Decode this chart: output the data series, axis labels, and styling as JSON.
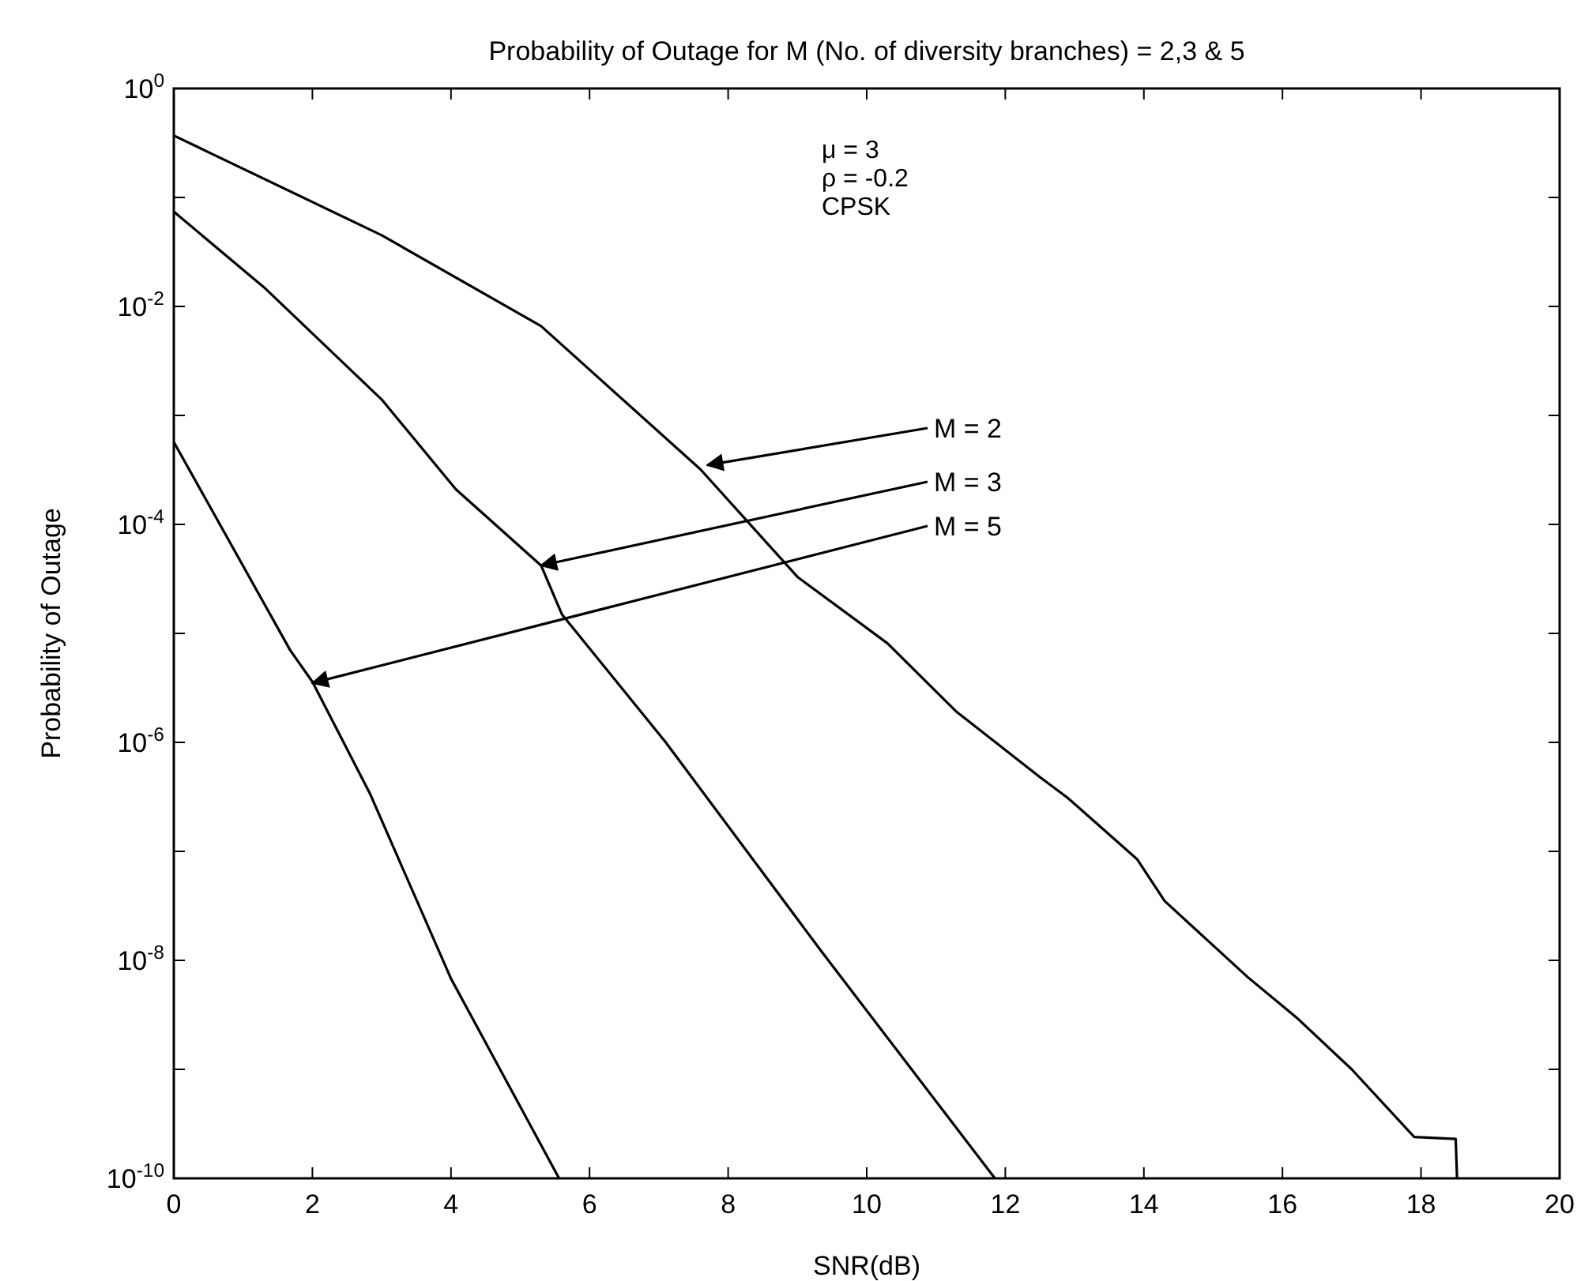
{
  "chart_data": {
    "type": "line",
    "title": "Probability of Outage for M (No. of diversity branches) = 2,3 & 5",
    "xlabel": "SNR(dB)",
    "ylabel": "Probability of Outage",
    "log": true,
    "grid": false,
    "marker": "none",
    "line_style": "solid",
    "xlim": [
      0,
      20
    ],
    "xticks": [
      0,
      2,
      4,
      6,
      8,
      10,
      12,
      14,
      16,
      18,
      20
    ],
    "ylim": [
      1e-10,
      1
    ],
    "yticks": [
      {
        "value": 1e-10,
        "label": "10$^{-10}$"
      },
      {
        "value": 1e-09,
        "label": null
      },
      {
        "value": 1e-08,
        "label": "10$^{-8}$"
      },
      {
        "value": 1e-07,
        "label": null
      },
      {
        "value": 1e-06,
        "label": "10$^{-6}$"
      },
      {
        "value": 1e-05,
        "label": null
      },
      {
        "value": 0.0001,
        "label": "10$^{-4}$"
      },
      {
        "value": 0.001,
        "label": null
      },
      {
        "value": 0.01,
        "label": "10$^{-2}$"
      },
      {
        "value": 0.1,
        "label": null
      },
      {
        "value": 1,
        "label": "10$^{0}$"
      }
    ],
    "series": [
      {
        "color": "#000000",
        "x": [
          0,
          3,
          5.3,
          7.6,
          9,
          10.3,
          11.3,
          12.5,
          12.9,
          13.9,
          14.3,
          15.5,
          16.2,
          17,
          17.9,
          18.5,
          18.52
        ],
        "values": [
          0.37,
          0.045,
          0.0066,
          0.00032,
          3.3e-05,
          8.1e-06,
          1.9e-06,
          4.8e-07,
          3.1e-07,
          8.5e-08,
          3.5e-08,
          7e-09,
          3e-09,
          1e-09,
          2.4e-10,
          2.3e-10,
          1e-10
        ]
      },
      {
        "color": "#000000",
        "x": [
          0,
          1.3,
          3,
          4.07,
          5.3,
          5.6,
          7.1,
          9.35,
          11.85
        ],
        "values": [
          0.074,
          0.015,
          0.0014,
          0.00021,
          4.2e-05,
          1.5e-05,
          1e-06,
          1.2e-08,
          1e-10
        ]
      },
      {
        "color": "#000000",
        "x": [
          0,
          1.68,
          2,
          2.83,
          4,
          5.56
        ],
        "values": [
          0.00057,
          7e-06,
          3.6e-06,
          3.4e-07,
          6.8e-09,
          1e-10
        ]
      }
    ],
    "annotations": [
      {
        "text": "M = 2",
        "x": 7.7,
        "y": 0.00035
      },
      {
        "text": "M = 3",
        "x": 5.3,
        "y": 4.2e-05
      },
      {
        "text": "M = 5",
        "x": 2,
        "y": 3.5e-06
      },
      "μ = 3",
      "ρ = -0.2",
      "CPSK"
    ]
  }
}
